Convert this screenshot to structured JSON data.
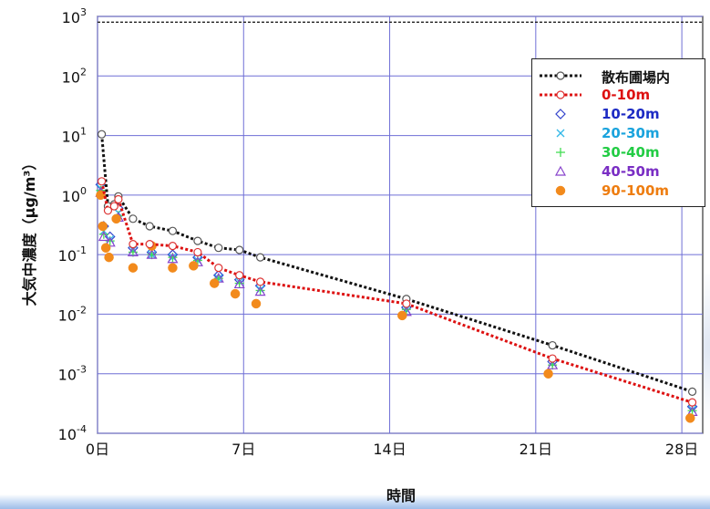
{
  "chart_data": {
    "type": "line",
    "ylabel": "大気中濃度（μg/m³）",
    "xlabel": "時間",
    "ylog": true,
    "ylim": [
      0.0001,
      1000
    ],
    "xlim": [
      0,
      29
    ],
    "x_ticks": [
      {
        "v": 0,
        "label": "0日"
      },
      {
        "v": 7,
        "label": "7日"
      },
      {
        "v": 14,
        "label": "14日"
      },
      {
        "v": 21,
        "label": "21日"
      },
      {
        "v": 28,
        "label": "28日"
      }
    ],
    "y_ticks": [
      {
        "v": 0.0001,
        "base": "10",
        "exp": "-4"
      },
      {
        "v": 0.001,
        "base": "10",
        "exp": "-3"
      },
      {
        "v": 0.01,
        "base": "10",
        "exp": "-2"
      },
      {
        "v": 0.1,
        "base": "10",
        "exp": "-1"
      },
      {
        "v": 1,
        "base": "10",
        "exp": "0"
      },
      {
        "v": 10,
        "base": "10",
        "exp": "1"
      },
      {
        "v": 100,
        "base": "10",
        "exp": "2"
      },
      {
        "v": 1000,
        "base": "10",
        "exp": "3"
      }
    ],
    "grid": true,
    "legend_position": "top-right",
    "reference_line": {
      "y": 800
    },
    "series": [
      {
        "name": "散布圃場内",
        "color": "#111111",
        "style": "dotted-line",
        "marker": "circle-open",
        "label_color": "#111111",
        "x": [
          0.2,
          0.5,
          0.8,
          1.0,
          1.7,
          2.5,
          3.6,
          4.8,
          5.8,
          6.8,
          7.8,
          14.8,
          21.8,
          28.5
        ],
        "y": [
          10.5,
          0.65,
          0.7,
          0.95,
          0.4,
          0.3,
          0.25,
          0.17,
          0.13,
          0.12,
          0.09,
          0.018,
          0.003,
          0.0005
        ]
      },
      {
        "name": "0-10m",
        "color": "#dd1111",
        "style": "dotted-line",
        "marker": "circle-open-red",
        "label_color": "#dd1111",
        "x": [
          0.2,
          0.5,
          0.8,
          1.0,
          1.7,
          2.5,
          3.6,
          4.8,
          5.8,
          6.8,
          7.8,
          14.8,
          21.8,
          28.5
        ],
        "y": [
          1.7,
          0.55,
          0.65,
          0.85,
          0.15,
          0.15,
          0.14,
          0.11,
          0.06,
          0.045,
          0.035,
          0.015,
          0.0018,
          0.00033
        ]
      },
      {
        "name": "10-20m",
        "color": "#3344cc",
        "style": "marker",
        "marker": "diamond",
        "label_color": "#1d2bc4",
        "x": [
          0.15,
          0.3,
          0.6,
          1.0,
          1.7,
          2.6,
          3.6,
          4.8,
          5.8,
          6.8,
          7.8,
          14.8,
          21.8,
          28.5
        ],
        "y": [
          1.5,
          0.3,
          0.2,
          0.6,
          0.13,
          0.11,
          0.1,
          0.09,
          0.045,
          0.038,
          0.03,
          0.013,
          0.0016,
          0.00028
        ]
      },
      {
        "name": "20-30m",
        "color": "#33b8e8",
        "style": "marker",
        "marker": "cross",
        "label_color": "#1aa3dd",
        "x": [
          0.15,
          0.3,
          0.6,
          1.0,
          1.7,
          2.6,
          3.6,
          4.8,
          5.8,
          6.8,
          7.8,
          14.8,
          21.8,
          28.5
        ],
        "y": [
          1.3,
          0.25,
          0.18,
          0.5,
          0.12,
          0.1,
          0.09,
          0.08,
          0.04,
          0.035,
          0.026,
          0.012,
          0.0015,
          0.00025
        ]
      },
      {
        "name": "30-40m",
        "color": "#44dd55",
        "style": "marker",
        "marker": "plus",
        "label_color": "#22cc44",
        "x": [
          0.15,
          0.3,
          0.6,
          1.0,
          1.7,
          2.6,
          3.6,
          4.8,
          5.8,
          6.8,
          7.8,
          14.8,
          21.8,
          28.5
        ],
        "y": [
          1.2,
          0.22,
          0.17,
          0.45,
          0.11,
          0.1,
          0.09,
          0.08,
          0.04,
          0.033,
          0.025,
          0.012,
          0.0014,
          0.00024
        ]
      },
      {
        "name": "40-50m",
        "color": "#8844cc",
        "style": "marker",
        "marker": "triangle",
        "label_color": "#7a2ec4",
        "x": [
          0.15,
          0.3,
          0.6,
          1.0,
          1.7,
          2.6,
          3.6,
          4.8,
          5.8,
          6.8,
          7.8,
          14.8,
          21.8,
          28.5
        ],
        "y": [
          1.1,
          0.2,
          0.16,
          0.42,
          0.11,
          0.1,
          0.085,
          0.075,
          0.04,
          0.032,
          0.024,
          0.011,
          0.0014,
          0.00023
        ]
      },
      {
        "name": "90-100m",
        "color": "#f28a1c",
        "style": "marker",
        "marker": "dot",
        "label_color": "#ee7d10",
        "x": [
          0.15,
          0.25,
          0.4,
          0.55,
          0.9,
          1.7,
          2.6,
          3.6,
          4.6,
          5.6,
          6.6,
          7.6,
          14.6,
          21.6,
          28.4
        ],
        "y": [
          1.0,
          0.3,
          0.13,
          0.09,
          0.4,
          0.06,
          0.14,
          0.06,
          0.065,
          0.033,
          0.022,
          0.015,
          0.0095,
          0.001,
          0.00018
        ]
      }
    ]
  }
}
